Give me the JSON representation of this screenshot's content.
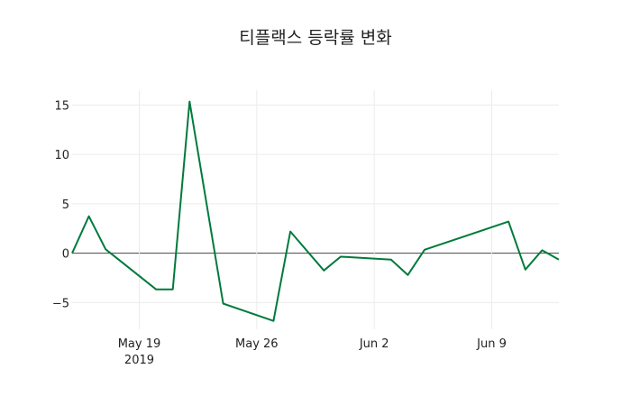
{
  "chart_data": {
    "type": "line",
    "title": "티플랙스 등락률 변화",
    "xlabel": "",
    "ylabel": "",
    "x": [
      "2019-05-15",
      "2019-05-16",
      "2019-05-17",
      "2019-05-20",
      "2019-05-21",
      "2019-05-22",
      "2019-05-24",
      "2019-05-27",
      "2019-05-28",
      "2019-05-30",
      "2019-05-31",
      "2019-06-03",
      "2019-06-04",
      "2019-06-05",
      "2019-06-10",
      "2019-06-11",
      "2019-06-12",
      "2019-06-13"
    ],
    "series": [
      {
        "name": "등락률",
        "color": "#007a3d",
        "values": [
          0.0,
          3.74,
          0.4,
          -3.65,
          -3.65,
          15.35,
          -5.1,
          -6.85,
          2.2,
          -1.75,
          -0.35,
          -0.65,
          -2.2,
          0.35,
          3.2,
          -1.65,
          0.3,
          -0.65
        ]
      }
    ],
    "xlim": [
      "2019-05-15",
      "2019-06-13"
    ],
    "ylim": [
      -7.7,
      16.5
    ],
    "x_ticks": [
      {
        "date": "2019-05-19",
        "label": "May 19",
        "sublabel": "2019"
      },
      {
        "date": "2019-05-26",
        "label": "May 26"
      },
      {
        "date": "2019-06-02",
        "label": "Jun 2"
      },
      {
        "date": "2019-06-09",
        "label": "Jun 9"
      }
    ],
    "y_ticks": [
      {
        "value": 15,
        "label": "15"
      },
      {
        "value": 10,
        "label": "10"
      },
      {
        "value": 5,
        "label": "5"
      },
      {
        "value": 0,
        "label": "0"
      },
      {
        "value": -5,
        "label": "−5"
      }
    ],
    "grid": true,
    "legend": "none"
  }
}
